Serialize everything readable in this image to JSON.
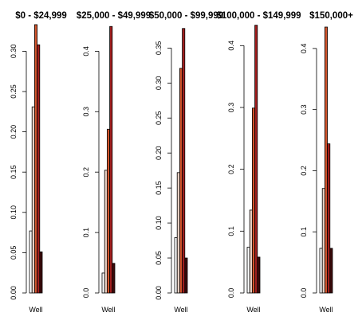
{
  "chart_data": [
    {
      "type": "bar",
      "title": "$0 - $24,999",
      "xlabel": "Well",
      "ylim": [
        0,
        0.33
      ],
      "yticks": [
        "0.00",
        "0.05",
        "0.10",
        "0.15",
        "0.20",
        "0.25",
        "0.30"
      ],
      "ytick_values": [
        0,
        0.05,
        0.1,
        0.15,
        0.2,
        0.25,
        0.3
      ],
      "values": [
        0.077,
        0.231,
        0.333,
        0.308,
        0.051
      ]
    },
    {
      "type": "bar",
      "title": "$25,000 - $49,999",
      "xlabel": "Well",
      "ylim": [
        0,
        0.44
      ],
      "yticks": [
        "0.0",
        "0.1",
        "0.2",
        "0.3",
        "0.4"
      ],
      "ytick_values": [
        0,
        0.1,
        0.2,
        0.3,
        0.4
      ],
      "values": [
        0.033,
        0.203,
        0.271,
        0.441,
        0.049
      ]
    },
    {
      "type": "bar",
      "title": "$50,000 - $99,999",
      "xlabel": "Well",
      "ylim": [
        0,
        0.38
      ],
      "yticks": [
        "0.00",
        "0.05",
        "0.10",
        "0.15",
        "0.20",
        "0.25",
        "0.30",
        "0.35"
      ],
      "ytick_values": [
        0,
        0.05,
        0.1,
        0.15,
        0.2,
        0.25,
        0.3,
        0.35
      ],
      "values": [
        0.079,
        0.172,
        0.321,
        0.378,
        0.05
      ]
    },
    {
      "type": "bar",
      "title": "$100,000 - $149,999",
      "xlabel": "Well",
      "ylim": [
        0,
        0.43
      ],
      "yticks": [
        "0.0",
        "0.1",
        "0.2",
        "0.3",
        "0.4"
      ],
      "ytick_values": [
        0,
        0.1,
        0.2,
        0.3,
        0.4
      ],
      "values": [
        0.074,
        0.134,
        0.299,
        0.433,
        0.058
      ]
    },
    {
      "type": "bar",
      "title": "$150,000+",
      "xlabel": "Well",
      "ylim": [
        0,
        0.435
      ],
      "yticks": [
        "0.0",
        "0.1",
        "0.2",
        "0.3",
        "0.4"
      ],
      "ytick_values": [
        0,
        0.1,
        0.2,
        0.3,
        0.4
      ],
      "values": [
        0.073,
        0.171,
        0.435,
        0.244,
        0.073
      ]
    }
  ],
  "colors": {
    "bar_fills": [
      "#ffffff",
      "#e7cfc2",
      "#d2552d",
      "#a01e1e",
      "#3d0a0a"
    ],
    "outline": "#000000"
  }
}
